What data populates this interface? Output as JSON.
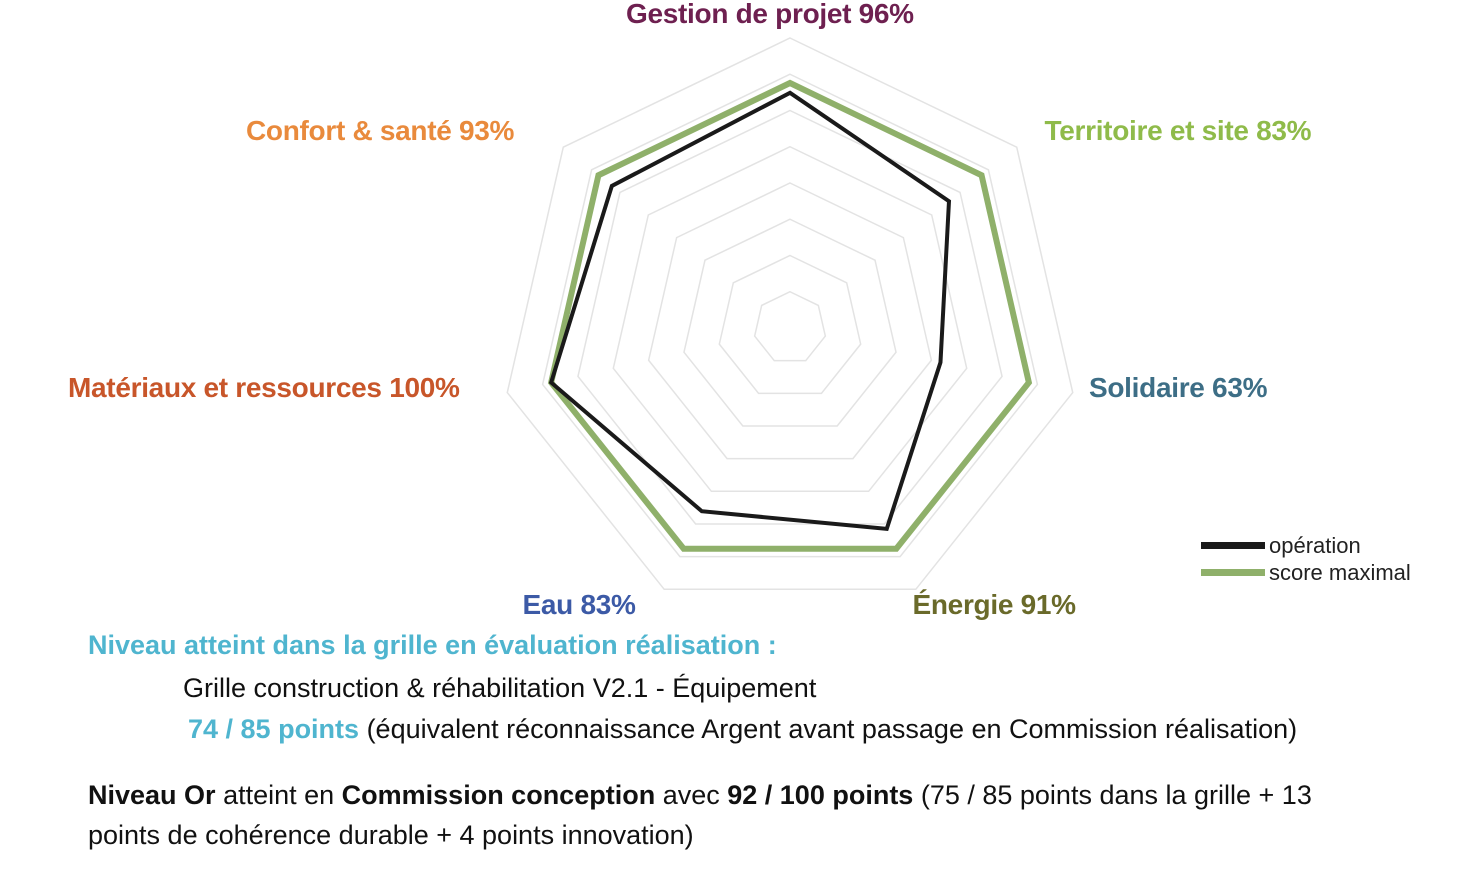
{
  "chart_data": {
    "type": "radar",
    "axes": [
      {
        "name": "Gestion de projet",
        "pct_label": "96%",
        "color": "#6e2050"
      },
      {
        "name": "Territoire et site",
        "pct_label": "83%",
        "color": "#8fbb4a"
      },
      {
        "name": "Solidaire",
        "pct_label": "63%",
        "color": "#3d6e86"
      },
      {
        "name": "Énergie",
        "pct_label": "91%",
        "color": "#6a6a2a"
      },
      {
        "name": "Eau",
        "pct_label": "83%",
        "color": "#3c5aa6"
      },
      {
        "name": "Matériaux et ressources",
        "pct_label": "100%",
        "color": "#c8562a"
      },
      {
        "name": "Confort & santé",
        "pct_label": "93%",
        "color": "#e98a3c"
      }
    ],
    "series": [
      {
        "name": "opération",
        "color": "#1a1a1a",
        "values": [
          96,
          83,
          63,
          91,
          83,
          100,
          93
        ]
      },
      {
        "name": "score maximal",
        "color": "#8fb06a",
        "values": [
          100,
          100,
          100,
          100,
          100,
          100,
          100
        ]
      }
    ],
    "grid_levels": 8,
    "legend_position": "bottom-right"
  },
  "text": {
    "heading": "Niveau atteint dans la grille en évaluation réalisation :",
    "grille": "Grille construction & réhabilitation V2.1 - Équipement",
    "points_strong": "74 / 85 points",
    "points_rest": " (équivalent réconnaissance Argent avant passage en Commission réalisation)",
    "or_1": "Niveau Or",
    "or_2": " atteint en ",
    "or_3": "Commission conception",
    "or_4": " avec ",
    "or_5": "92 / 100 points",
    "or_6": " (75 / 85 points dans la grille + 13",
    "or_7": "points de cohérence durable + 4 points innovation)"
  },
  "colors": {
    "heading": "#4fb5cf",
    "points": "#4fb5cf",
    "grid": "#e3e3e3"
  }
}
